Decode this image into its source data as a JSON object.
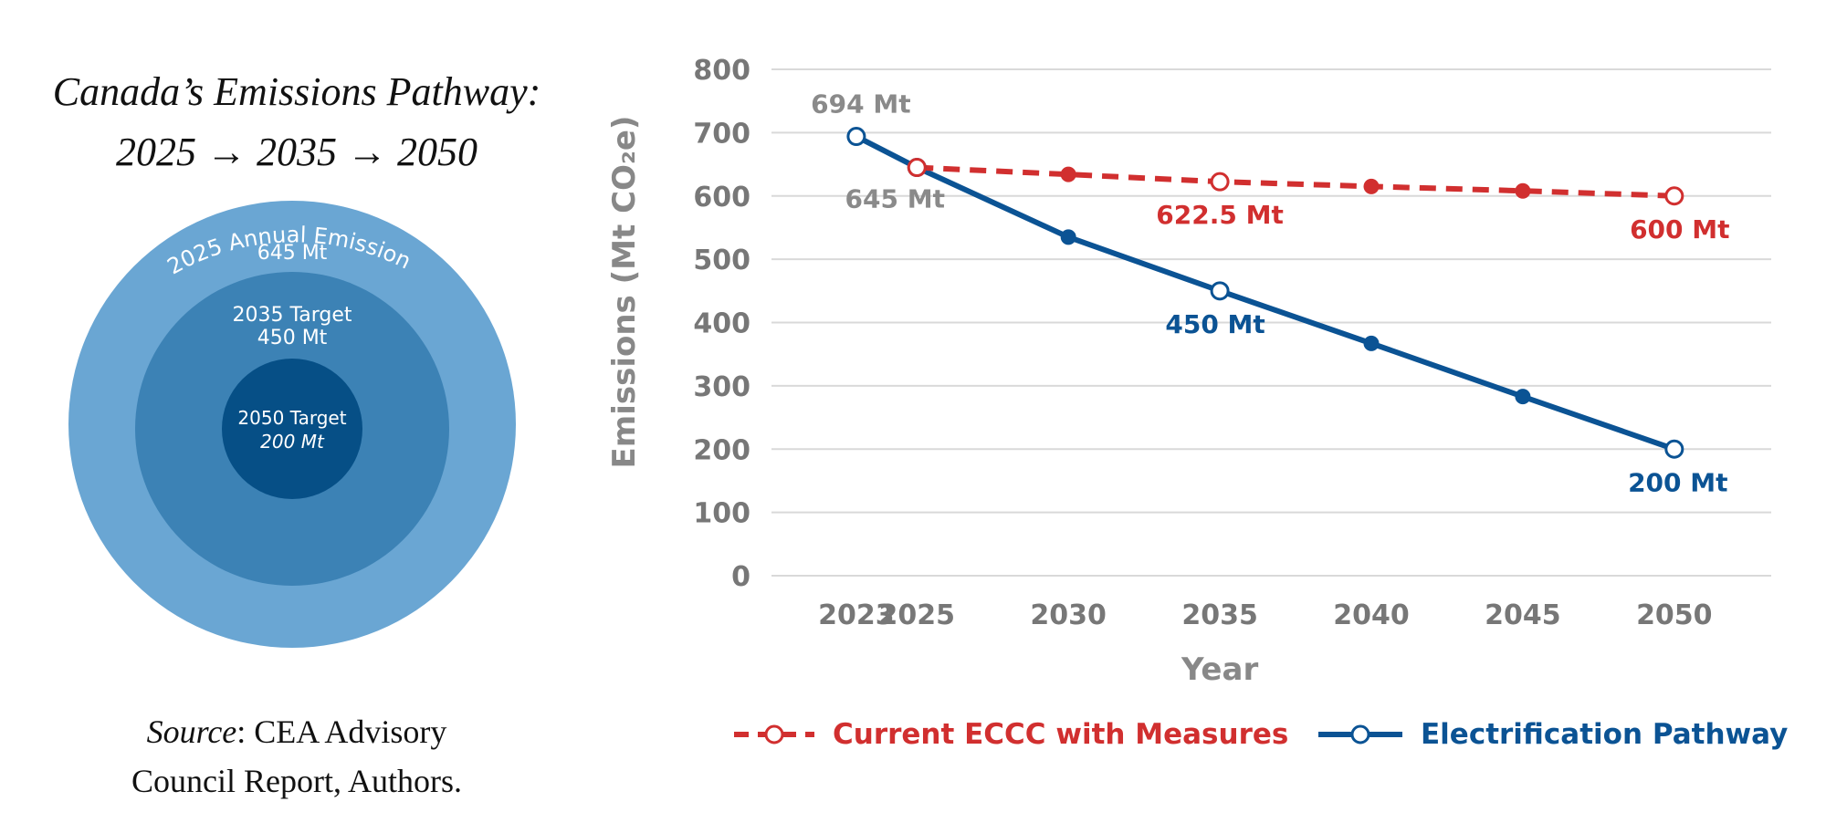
{
  "left_panel": {
    "title_line1": "Canada’s Emissions Pathway:",
    "title_line2": "2025 → 2035 → 2050",
    "circles": [
      {
        "label_top": "2025 Annual Emissions",
        "label_value": "645 Mt",
        "color": "#6aa6d3"
      },
      {
        "label_top": "2035 Target",
        "label_value": "450 Mt",
        "color": "#3c82b5"
      },
      {
        "label_top": "2050 Target",
        "label_value": "200 Mt",
        "color": "#064f86"
      }
    ],
    "source_label": "Source",
    "source_text": ": CEA Advisory",
    "source_text2": "Council Report, Authors."
  },
  "chart_data": {
    "type": "line",
    "title": "",
    "xlabel": "Year",
    "ylabel": "Emissions (Mt CO₂e)",
    "ylim": [
      0,
      800
    ],
    "yticks": [
      0,
      100,
      200,
      300,
      400,
      500,
      600,
      700,
      800
    ],
    "x": [
      2023,
      2025,
      2030,
      2035,
      2040,
      2045,
      2050
    ],
    "grid": true,
    "legend_position": "bottom",
    "series": [
      {
        "name": "Current ECCC with Measures",
        "color": "#d12f2f",
        "style": "dashed",
        "x": [
          2025,
          2030,
          2035,
          2040,
          2045,
          2050
        ],
        "values": [
          645,
          634,
          622.5,
          615,
          608,
          600
        ],
        "open_markers": [
          2025,
          2035,
          2050
        ],
        "labels": [
          {
            "x": 2035,
            "y": 622.5,
            "text": "622.5 Mt"
          },
          {
            "x": 2050,
            "y": 600,
            "text": "600 Mt"
          }
        ]
      },
      {
        "name": "Electrification Pathway",
        "color": "#0b5394",
        "style": "solid",
        "x": [
          2023,
          2025,
          2030,
          2035,
          2040,
          2045,
          2050
        ],
        "values": [
          694,
          645,
          535,
          450,
          367,
          283,
          200
        ],
        "open_markers": [
          2023,
          2025,
          2035,
          2050
        ],
        "labels": [
          {
            "x": 2035,
            "y": 450,
            "text": "450 Mt"
          },
          {
            "x": 2050,
            "y": 200,
            "text": "200 Mt"
          }
        ]
      }
    ],
    "annotations": [
      {
        "x": 2023,
        "y": 694,
        "text": "694 Mt",
        "color": "#8a8a8a"
      },
      {
        "x": 2025,
        "y": 645,
        "text": "645 Mt",
        "color": "#8a8a8a"
      }
    ]
  }
}
